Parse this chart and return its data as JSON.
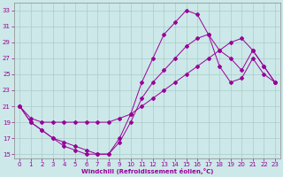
{
  "xlabel": "Windchill (Refroidissement éolien,°C)",
  "background_color": "#cce8e8",
  "grid_color": "#aacccc",
  "line_color": "#990099",
  "xlim": [
    -0.5,
    23.5
  ],
  "ylim": [
    14.5,
    34
  ],
  "xticks": [
    0,
    1,
    2,
    3,
    4,
    5,
    6,
    7,
    8,
    9,
    10,
    11,
    12,
    13,
    14,
    15,
    16,
    17,
    18,
    19,
    20,
    21,
    22,
    23
  ],
  "yticks": [
    15,
    17,
    19,
    21,
    23,
    25,
    27,
    29,
    31,
    33
  ],
  "line1_x": [
    0,
    1,
    2,
    3,
    4,
    5,
    6,
    7,
    8,
    9,
    10,
    11,
    12,
    13,
    14,
    15,
    16,
    17,
    18,
    19,
    20,
    21,
    22,
    23
  ],
  "line1_y": [
    21,
    19,
    18,
    17,
    16,
    15.5,
    15,
    15,
    15,
    17,
    20,
    24,
    27,
    30,
    31.5,
    33,
    32.5,
    30,
    26,
    24,
    24.5,
    27,
    25,
    24
  ],
  "line2_x": [
    0,
    1,
    2,
    3,
    4,
    5,
    6,
    7,
    8,
    9,
    10,
    11,
    12,
    13,
    14,
    15,
    16,
    17,
    18,
    19,
    20,
    21,
    22,
    23
  ],
  "line2_y": [
    21,
    19.5,
    19,
    19,
    19,
    19,
    19,
    19,
    19,
    19.5,
    20,
    21,
    22,
    23,
    24,
    25,
    26,
    27,
    28,
    29,
    29.5,
    28,
    26,
    24
  ],
  "line3_x": [
    0,
    1,
    2,
    3,
    4,
    5,
    6,
    7,
    8,
    9,
    10,
    11,
    12,
    13,
    14,
    15,
    16,
    17,
    18,
    19,
    20,
    21,
    22,
    23
  ],
  "line3_y": [
    21,
    19,
    18,
    17,
    16.5,
    16,
    15.5,
    15,
    15,
    16.5,
    19,
    22,
    24,
    25.5,
    27,
    28.5,
    29.5,
    30,
    28,
    27,
    25.5,
    28,
    26,
    24
  ]
}
